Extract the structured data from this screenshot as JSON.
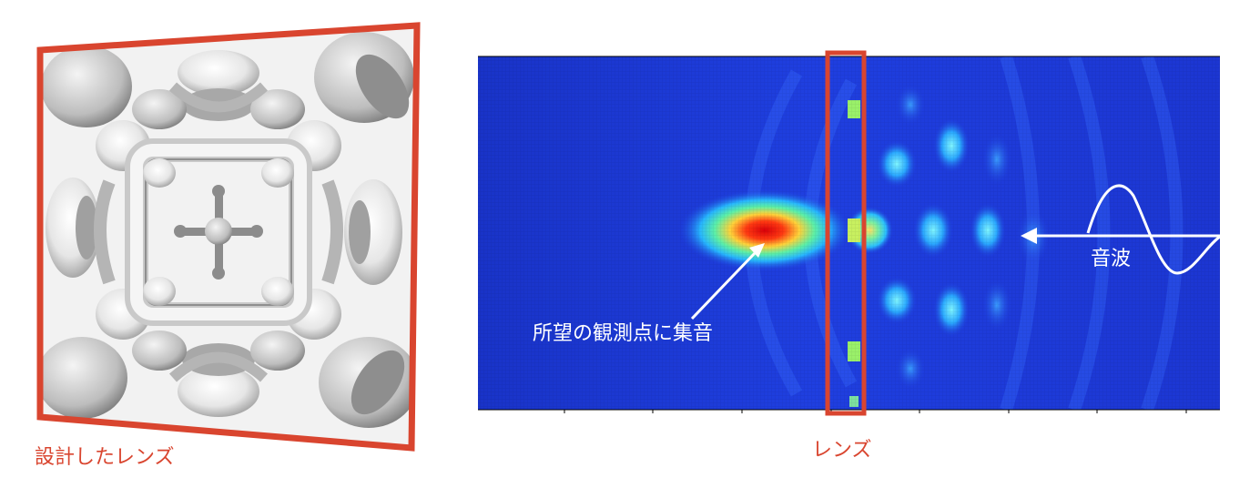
{
  "left_panel": {
    "caption": "設計したレンズ"
  },
  "right_panel": {
    "lens_label": "レンズ",
    "focus_label": "所望の観測点に集音",
    "wave_label": "音波"
  },
  "colors": {
    "frame_red": "#d9452f",
    "field_dark_blue": "#1a2fcc",
    "field_blue": "#2450ff",
    "focus_red": "#e8210f",
    "annotation_white": "#ffffff"
  }
}
